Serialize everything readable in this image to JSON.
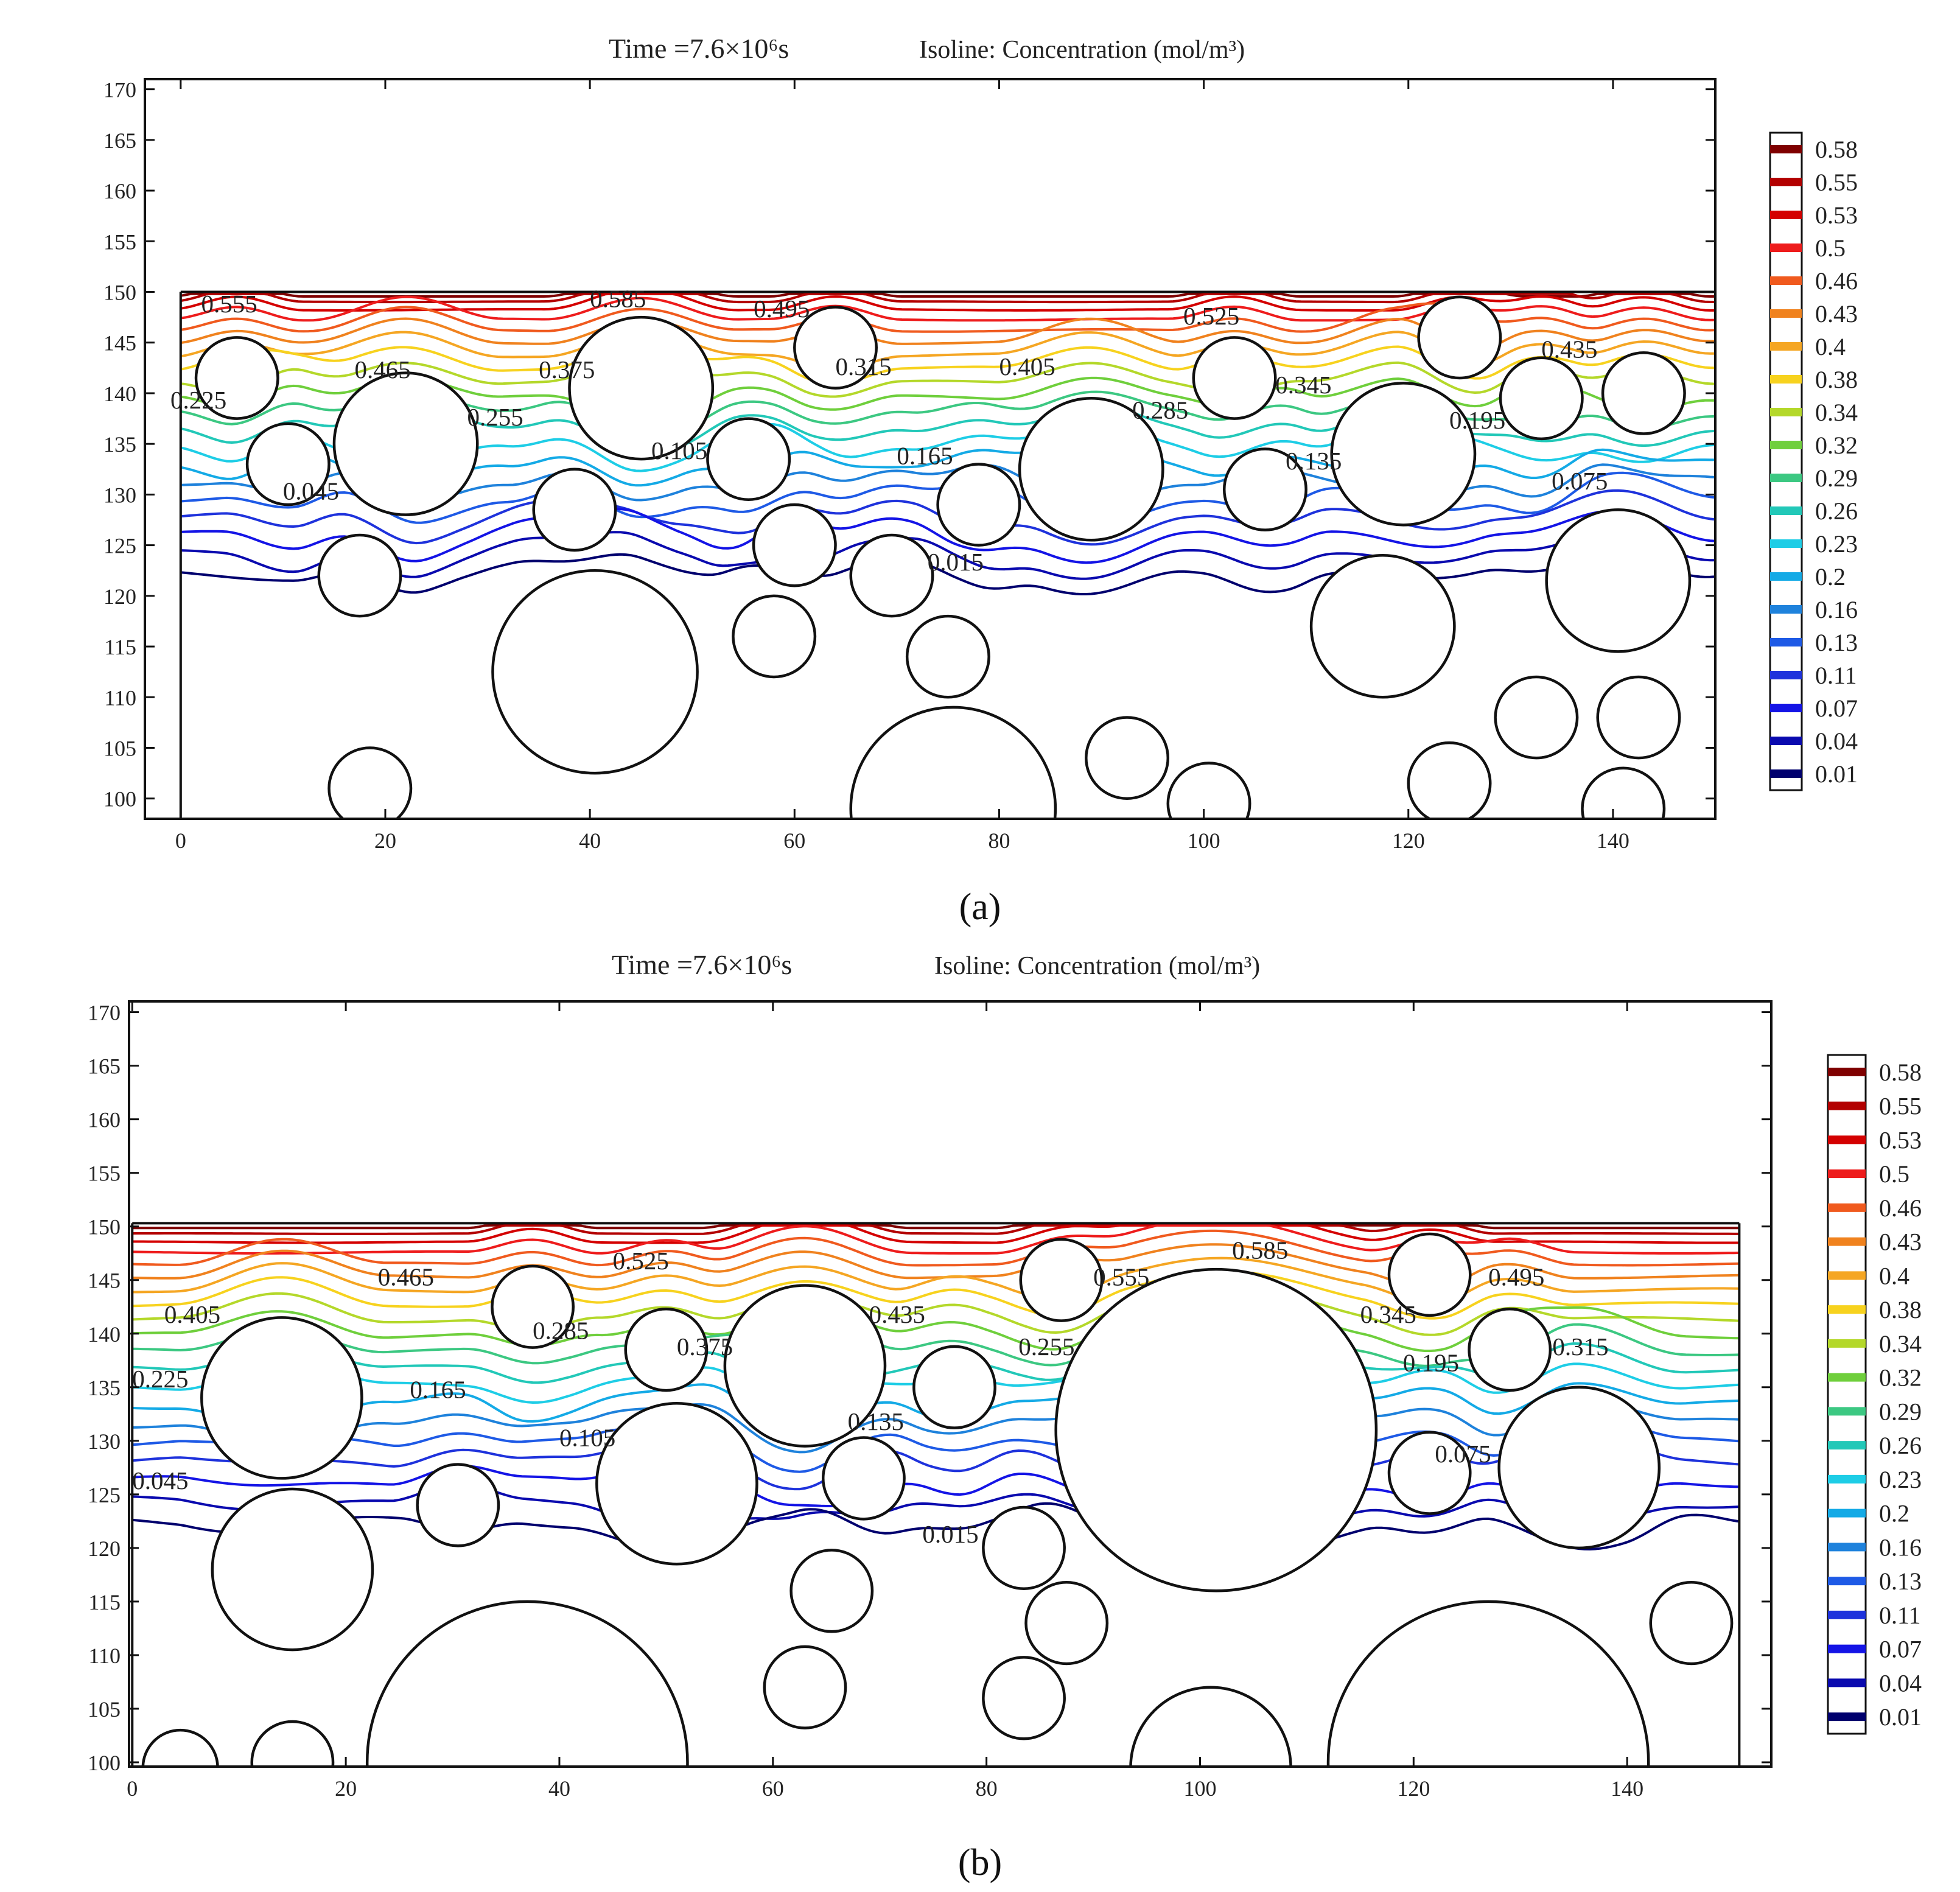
{
  "chart_data": [
    {
      "panel": "a",
      "type": "contour",
      "caption": "(a)",
      "title_time": "Time =7.6×10⁶s",
      "title_quantity": "Isoline: Concentration (mol/m³)",
      "xlim": [
        -3.5,
        150
      ],
      "ylim": [
        98,
        171
      ],
      "domain": {
        "x": [
          0,
          150
        ],
        "y_top": 150
      },
      "x_ticks": [
        "0",
        "20",
        "40",
        "60",
        "80",
        "100",
        "120",
        "140"
      ],
      "y_ticks": [
        "100",
        "105",
        "110",
        "115",
        "120",
        "125",
        "130",
        "135",
        "140",
        "145",
        "150",
        "155",
        "160",
        "165",
        "170"
      ],
      "contour_levels_base": 0.015,
      "contour_level_step": 0.03,
      "contour_level_count": 20,
      "contour_labels": [
        {
          "text": "0.555",
          "x": 2,
          "y": 148
        },
        {
          "text": "0.585",
          "x": 40,
          "y": 148.5
        },
        {
          "text": "0.495",
          "x": 56,
          "y": 147.5
        },
        {
          "text": "0.525",
          "x": 98,
          "y": 146.8
        },
        {
          "text": "0.435",
          "x": 133,
          "y": 143.5
        },
        {
          "text": "0.465",
          "x": 17,
          "y": 141.5
        },
        {
          "text": "0.375",
          "x": 35,
          "y": 141.5
        },
        {
          "text": "0.315",
          "x": 64,
          "y": 141.8
        },
        {
          "text": "0.405",
          "x": 80,
          "y": 141.8
        },
        {
          "text": "0.345",
          "x": 107,
          "y": 140
        },
        {
          "text": "0.225",
          "x": -1,
          "y": 138.5
        },
        {
          "text": "0.255",
          "x": 28,
          "y": 136.8
        },
        {
          "text": "0.285",
          "x": 93,
          "y": 137.5
        },
        {
          "text": "0.195",
          "x": 124,
          "y": 136.5
        },
        {
          "text": "0.105",
          "x": 46,
          "y": 133.5
        },
        {
          "text": "0.165",
          "x": 70,
          "y": 133
        },
        {
          "text": "0.135",
          "x": 108,
          "y": 132.5
        },
        {
          "text": "0.045",
          "x": 10,
          "y": 129.5
        },
        {
          "text": "0.075",
          "x": 134,
          "y": 130.5
        },
        {
          "text": "0.015",
          "x": 73,
          "y": 122.5
        }
      ],
      "circles": [
        {
          "x": 5.5,
          "y": 141.5,
          "r": 4
        },
        {
          "x": 10.5,
          "y": 133,
          "r": 4
        },
        {
          "x": 22,
          "y": 135,
          "r": 7
        },
        {
          "x": 45,
          "y": 140.5,
          "r": 7
        },
        {
          "x": 38.5,
          "y": 128.5,
          "r": 4
        },
        {
          "x": 55.5,
          "y": 133.5,
          "r": 4
        },
        {
          "x": 64,
          "y": 144.5,
          "r": 4
        },
        {
          "x": 60,
          "y": 125,
          "r": 4
        },
        {
          "x": 17.5,
          "y": 122,
          "r": 4
        },
        {
          "x": 40.5,
          "y": 112.5,
          "r": 10
        },
        {
          "x": 58,
          "y": 116,
          "r": 4
        },
        {
          "x": 69.5,
          "y": 122,
          "r": 4
        },
        {
          "x": 75,
          "y": 114,
          "r": 4
        },
        {
          "x": 78,
          "y": 129,
          "r": 4
        },
        {
          "x": 89,
          "y": 132.5,
          "r": 7
        },
        {
          "x": 75.5,
          "y": 99,
          "r": 10
        },
        {
          "x": 92.5,
          "y": 104,
          "r": 4
        },
        {
          "x": 100.5,
          "y": 99.5,
          "r": 4
        },
        {
          "x": 103,
          "y": 141.5,
          "r": 4
        },
        {
          "x": 106,
          "y": 130.5,
          "r": 4
        },
        {
          "x": 119.5,
          "y": 134,
          "r": 7
        },
        {
          "x": 125,
          "y": 145.5,
          "r": 4
        },
        {
          "x": 133,
          "y": 139.5,
          "r": 4
        },
        {
          "x": 143,
          "y": 140,
          "r": 4
        },
        {
          "x": 117.5,
          "y": 117,
          "r": 7
        },
        {
          "x": 140.5,
          "y": 121.5,
          "r": 7
        },
        {
          "x": 132.5,
          "y": 108,
          "r": 4
        },
        {
          "x": 142.5,
          "y": 108,
          "r": 4
        },
        {
          "x": 124,
          "y": 101.5,
          "r": 4
        },
        {
          "x": 141,
          "y": 99,
          "r": 4
        },
        {
          "x": 18.5,
          "y": 101,
          "r": 4
        }
      ]
    },
    {
      "panel": "b",
      "type": "contour",
      "caption": "(b)",
      "title_time": "Time =7.6×10⁶s",
      "title_quantity": "Isoline: Concentration (mol/m³)",
      "xlim": [
        -0.3,
        153.5
      ],
      "ylim": [
        99.6,
        171
      ],
      "domain": {
        "x": [
          0,
          150.5
        ],
        "y_top": 150.3
      },
      "x_ticks": [
        "0",
        "20",
        "40",
        "60",
        "80",
        "100",
        "120",
        "140"
      ],
      "y_ticks": [
        "100",
        "105",
        "110",
        "115",
        "120",
        "125",
        "130",
        "135",
        "140",
        "145",
        "150",
        "155",
        "160",
        "165",
        "170"
      ],
      "contour_levels_base": 0.015,
      "contour_level_step": 0.03,
      "contour_level_count": 20,
      "contour_labels": [
        {
          "text": "0.585",
          "x": 103,
          "y": 147
        },
        {
          "text": "0.525",
          "x": 45,
          "y": 146
        },
        {
          "text": "0.555",
          "x": 90,
          "y": 144.5
        },
        {
          "text": "0.465",
          "x": 23,
          "y": 144.5
        },
        {
          "text": "0.495",
          "x": 127,
          "y": 144.5
        },
        {
          "text": "0.405",
          "x": 3,
          "y": 141
        },
        {
          "text": "0.435",
          "x": 69,
          "y": 141
        },
        {
          "text": "0.345",
          "x": 115,
          "y": 141
        },
        {
          "text": "0.285",
          "x": 37.5,
          "y": 139.5
        },
        {
          "text": "0.375",
          "x": 51,
          "y": 138
        },
        {
          "text": "0.255",
          "x": 83,
          "y": 138
        },
        {
          "text": "0.315",
          "x": 133,
          "y": 138
        },
        {
          "text": "0.195",
          "x": 119,
          "y": 136.5
        },
        {
          "text": "0.225",
          "x": 0,
          "y": 135
        },
        {
          "text": "0.165",
          "x": 26,
          "y": 134
        },
        {
          "text": "0.135",
          "x": 67,
          "y": 131
        },
        {
          "text": "0.105",
          "x": 40,
          "y": 129.5
        },
        {
          "text": "0.075",
          "x": 122,
          "y": 128
        },
        {
          "text": "0.045",
          "x": 0,
          "y": 125.5
        },
        {
          "text": "0.015",
          "x": 74,
          "y": 120.5
        }
      ],
      "circles": [
        {
          "x": 14,
          "y": 134,
          "r": 7.5
        },
        {
          "x": 37.5,
          "y": 142.5,
          "r": 3.8
        },
        {
          "x": 50,
          "y": 138.5,
          "r": 3.8
        },
        {
          "x": 63,
          "y": 137,
          "r": 7.5
        },
        {
          "x": 77,
          "y": 135,
          "r": 3.8
        },
        {
          "x": 87,
          "y": 145,
          "r": 3.8
        },
        {
          "x": 101.5,
          "y": 131,
          "r": 15
        },
        {
          "x": 121.5,
          "y": 145.5,
          "r": 3.8
        },
        {
          "x": 129,
          "y": 138.5,
          "r": 3.8
        },
        {
          "x": 135.5,
          "y": 127.5,
          "r": 7.5
        },
        {
          "x": 121.5,
          "y": 127,
          "r": 3.8
        },
        {
          "x": 51,
          "y": 126,
          "r": 7.5
        },
        {
          "x": 68.5,
          "y": 126.5,
          "r": 3.8
        },
        {
          "x": 30.5,
          "y": 124,
          "r": 3.8
        },
        {
          "x": 15,
          "y": 118,
          "r": 7.5
        },
        {
          "x": 65.5,
          "y": 116,
          "r": 3.8
        },
        {
          "x": 83.5,
          "y": 120,
          "r": 3.8
        },
        {
          "x": 87.5,
          "y": 113,
          "r": 3.8
        },
        {
          "x": 63,
          "y": 107,
          "r": 3.8
        },
        {
          "x": 83.5,
          "y": 106,
          "r": 3.8
        },
        {
          "x": 37,
          "y": 100,
          "r": 15
        },
        {
          "x": 101,
          "y": 99.5,
          "r": 7.5
        },
        {
          "x": 127,
          "y": 100,
          "r": 15
        },
        {
          "x": 146,
          "y": 113,
          "r": 3.8
        },
        {
          "x": 4.5,
          "y": 99.5,
          "r": 3.5
        },
        {
          "x": 15,
          "y": 100,
          "r": 3.8
        }
      ]
    }
  ],
  "colorbar": {
    "labels": [
      "0.58",
      "0.55",
      "0.53",
      "0.5",
      "0.46",
      "0.43",
      "0.4",
      "0.38",
      "0.34",
      "0.32",
      "0.29",
      "0.26",
      "0.23",
      "0.2",
      "0.16",
      "0.13",
      "0.11",
      "0.07",
      "0.04",
      "0.01"
    ],
    "colors": [
      "#7f0000",
      "#b30000",
      "#d40000",
      "#ee1c1c",
      "#f05a1e",
      "#f0821e",
      "#f5a623",
      "#f7d21e",
      "#b4d82a",
      "#6fcf3c",
      "#3cc882",
      "#22c8b8",
      "#1ecde6",
      "#14aae6",
      "#1e82dc",
      "#1e5ae6",
      "#1e32dc",
      "#1414e6",
      "#0a0aaf",
      "#00006e"
    ]
  }
}
